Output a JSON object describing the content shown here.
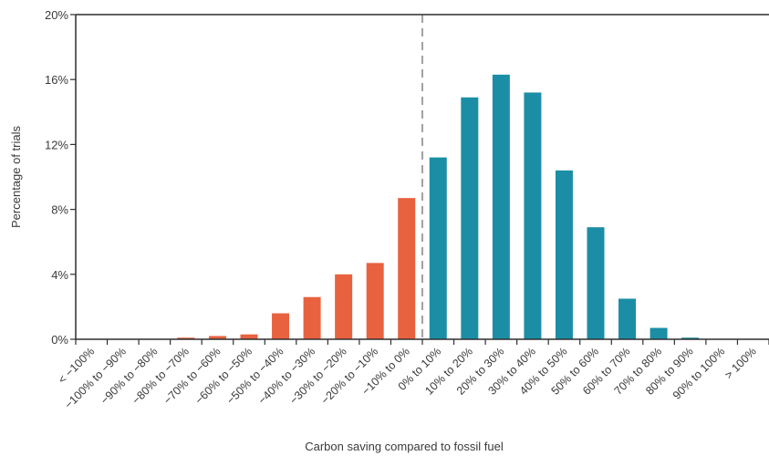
{
  "chart_data": {
    "type": "bar",
    "title": "",
    "xlabel": "Carbon saving compared to fossil fuel",
    "ylabel": "Percentage of trials",
    "ylim": [
      0,
      20
    ],
    "yticks": [
      "0%",
      "4%",
      "8%",
      "12%",
      "16%",
      "20%"
    ],
    "grid": false,
    "divider_after_category": "−10% to 0%",
    "categories": [
      "< −100%",
      "−100% to −90%",
      "−90% to −80%",
      "−80% to −70%",
      "−70% to −60%",
      "−60% to −50%",
      "−50% to −40%",
      "−40% to −30%",
      "−30% to −20%",
      "−20% to −10%",
      "−10% to 0%",
      "0% to 10%",
      "10% to 20%",
      "20% to 30%",
      "30% to 40%",
      "40% to 50%",
      "50% to 60%",
      "60% to 70%",
      "70% to 80%",
      "80% to 90%",
      "90% to 100%",
      "> 100%"
    ],
    "values": [
      0,
      0,
      0,
      0.1,
      0.2,
      0.3,
      1.6,
      2.6,
      4.0,
      4.7,
      8.7,
      11.2,
      14.9,
      16.3,
      15.2,
      10.4,
      6.9,
      2.5,
      0.7,
      0.1,
      0,
      0
    ],
    "colors": {
      "negative": "#E8623F",
      "positive": "#1B8EA6"
    }
  }
}
